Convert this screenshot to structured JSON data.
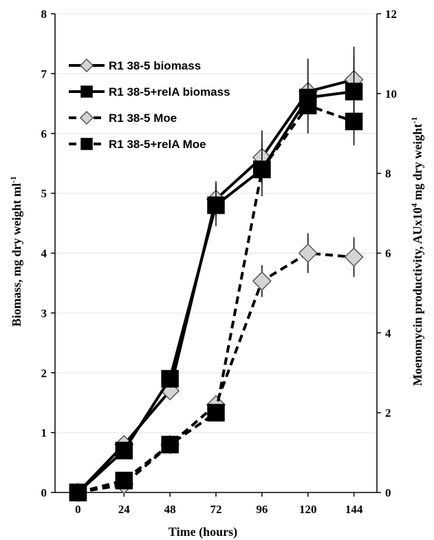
{
  "chart_data": {
    "type": "line",
    "title": "",
    "xlabel": "Time (hours)",
    "ylabel_left": "Biomass, mg dry weight ml",
    "ylabel_left_sup": "-1",
    "ylabel_right": "Moenomycin productivity, AUx10",
    "ylabel_right_sup1": "4",
    "ylabel_right_mid": " mg dry weight",
    "ylabel_right_sup2": "-1",
    "x": [
      0,
      24,
      48,
      72,
      96,
      120,
      144
    ],
    "xlim": [
      -12,
      156
    ],
    "ylim_left": [
      0,
      8
    ],
    "ylim_right": [
      0,
      12
    ],
    "yticks_left": [
      0,
      1,
      2,
      3,
      4,
      5,
      6,
      7,
      8
    ],
    "yticks_right": [
      0,
      2,
      4,
      6,
      8,
      10,
      12
    ],
    "grid": true,
    "legend_position": "top-left",
    "series": [
      {
        "name": "R1 38-5 biomass",
        "axis": "left",
        "marker": "diamond",
        "fill": "#d4d4d4",
        "dashed": false,
        "values": [
          0,
          0.8,
          1.7,
          4.9,
          5.6,
          6.7,
          6.9
        ],
        "errors": [
          0,
          0,
          0,
          0.3,
          0.45,
          0.55,
          0.55
        ]
      },
      {
        "name": "R1 38-5+relA biomass",
        "axis": "left",
        "marker": "square",
        "fill": "#000000",
        "dashed": false,
        "values": [
          0,
          0.7,
          1.9,
          4.8,
          5.4,
          6.6,
          6.7
        ],
        "errors": [
          0,
          0,
          0,
          0.35,
          0.45,
          0.6,
          0.6
        ]
      },
      {
        "name": "R1 38-5 Moe",
        "axis": "right",
        "marker": "diamond",
        "fill": "#d4d4d4",
        "dashed": true,
        "values": [
          0,
          0.2,
          1.2,
          2.2,
          5.3,
          6.0,
          5.9
        ],
        "errors": [
          0,
          0,
          0,
          0,
          0.4,
          0.5,
          0.5
        ]
      },
      {
        "name": "R1 38-5+relA Moe",
        "axis": "right",
        "marker": "square",
        "fill": "#000000",
        "dashed": true,
        "values": [
          0,
          0.3,
          1.2,
          2.0,
          8.1,
          9.7,
          9.3
        ],
        "errors": [
          0,
          0,
          0,
          0,
          0,
          0,
          0.6
        ]
      }
    ]
  }
}
